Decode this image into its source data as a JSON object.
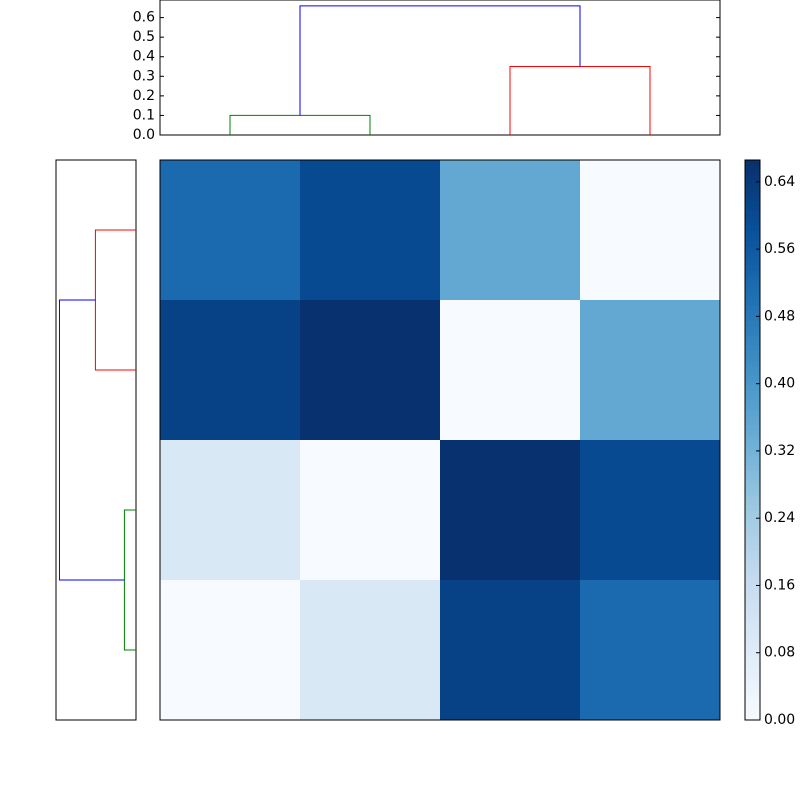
{
  "chart_data": [
    {
      "type": "dendrogram",
      "orientation": "top",
      "ylim": [
        0,
        0.69
      ],
      "yticks": [
        {
          "value": 0,
          "label": "0.0"
        },
        0.1,
        0.2,
        0.3,
        0.4,
        0.5,
        0.6
      ],
      "links": [
        {
          "children": [
            0,
            1
          ],
          "height": 0.1,
          "color": "#008000"
        },
        {
          "children": [
            2,
            3
          ],
          "height": 0.35,
          "color": "#ff0000"
        },
        {
          "children": [
            4,
            5
          ],
          "height": 0.66,
          "color": "#0000ff"
        }
      ]
    },
    {
      "type": "dendrogram",
      "orientation": "left",
      "xlim": [
        0.69,
        0
      ],
      "links": [
        {
          "children": [
            0,
            1
          ],
          "height": 0.35,
          "color": "#ff0000"
        },
        {
          "children": [
            2,
            3
          ],
          "height": 0.1,
          "color": "#008000"
        },
        {
          "children": [
            4,
            5
          ],
          "height": 0.66,
          "color": "#0000ff"
        }
      ]
    },
    {
      "type": "heatmap",
      "colormap": "Blues",
      "zlim": [
        0,
        0.666
      ],
      "zticks": [
        {
          "value": 0,
          "label": "0.00"
        },
        0.08,
        0.16,
        0.24,
        0.32,
        {
          "value": 0.4,
          "label": "0.40"
        },
        0.48,
        0.56,
        0.64
      ],
      "z": [
        [
          0.52,
          0.6,
          0.35,
          0
        ],
        [
          0.62,
          0.66,
          0,
          0.35
        ],
        [
          0.1,
          0,
          0.66,
          0.6
        ],
        [
          0,
          0.1,
          0.62,
          0.52
        ]
      ]
    }
  ]
}
